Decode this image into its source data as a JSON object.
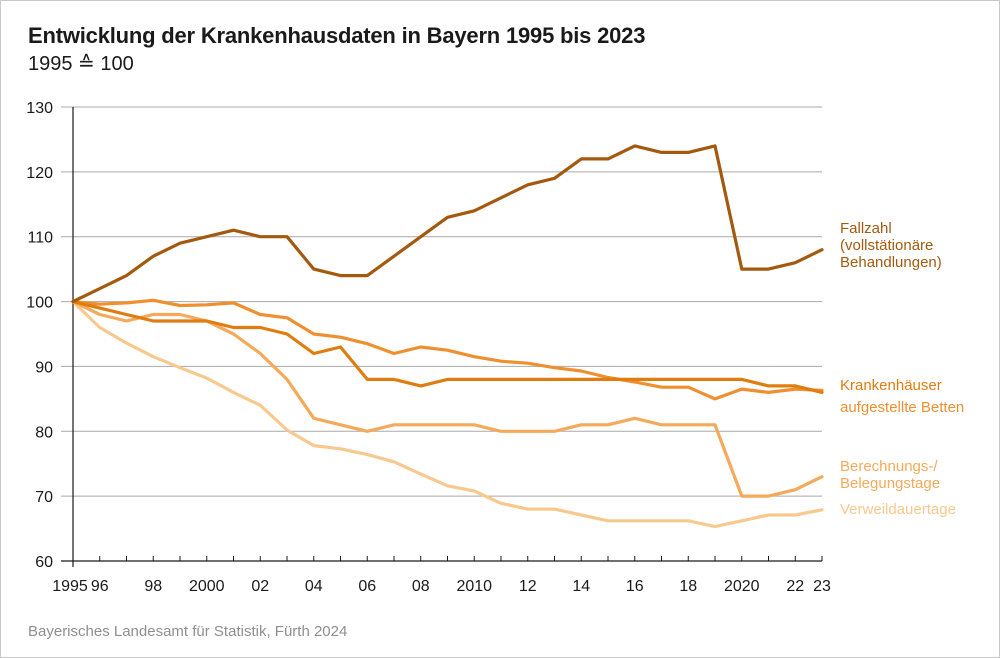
{
  "title": "Entwicklung der Krankenhausdaten in Bayern 1995 bis 2023",
  "subtitle": "1995 ≙ 100",
  "source": "Bayerisches Landesamt für Statistik, Fürth 2024",
  "chart_data": {
    "type": "line",
    "title": "Entwicklung der Krankenhausdaten in Bayern 1995 bis 2023",
    "subtitle": "1995 ≙ 100",
    "x": [
      1995,
      1996,
      1997,
      1998,
      1999,
      2000,
      2001,
      2002,
      2003,
      2004,
      2005,
      2006,
      2007,
      2008,
      2009,
      2010,
      2011,
      2012,
      2013,
      2014,
      2015,
      2016,
      2017,
      2018,
      2019,
      2020,
      2021,
      2022,
      2023
    ],
    "x_tick_labels": [
      {
        "x": 1995,
        "label": "1995"
      },
      {
        "x": 1996,
        "label": "96"
      },
      {
        "x": 1998,
        "label": "98"
      },
      {
        "x": 2000,
        "label": "2000"
      },
      {
        "x": 2002,
        "label": "02"
      },
      {
        "x": 2004,
        "label": "04"
      },
      {
        "x": 2006,
        "label": "06"
      },
      {
        "x": 2008,
        "label": "08"
      },
      {
        "x": 2010,
        "label": "2010"
      },
      {
        "x": 2012,
        "label": "12"
      },
      {
        "x": 2014,
        "label": "14"
      },
      {
        "x": 2016,
        "label": "16"
      },
      {
        "x": 2018,
        "label": "18"
      },
      {
        "x": 2020,
        "label": "2020"
      },
      {
        "x": 2022,
        "label": "22"
      },
      {
        "x": 2023,
        "label": "23"
      }
    ],
    "y_ticks": [
      60,
      70,
      80,
      90,
      100,
      110,
      120,
      130
    ],
    "ylim": [
      60,
      130
    ],
    "xlim": [
      1995,
      2023
    ],
    "grid": "horizontal",
    "legend": "direct labels right",
    "series": [
      {
        "id": "fallzahl",
        "label_lines": [
          "Fallzahl",
          "(vollstätionäre",
          "Behandlungen)"
        ],
        "color": "#a35a0f",
        "values": [
          100,
          102,
          104,
          107,
          109,
          110,
          111,
          110,
          110,
          105,
          104,
          104,
          107,
          110,
          113,
          114,
          116,
          118,
          119,
          122,
          122,
          124,
          123,
          123,
          124,
          105,
          105,
          106,
          108
        ]
      },
      {
        "id": "krankenhaeuser",
        "label_lines": [
          "Krankenhäuser"
        ],
        "color": "#e07d10",
        "values": [
          100,
          99,
          98,
          97,
          97,
          97,
          96,
          96,
          95,
          92,
          93,
          88,
          88,
          87,
          88,
          88,
          88,
          88,
          88,
          88,
          88,
          88,
          88,
          88,
          88,
          88,
          87,
          87,
          86
        ]
      },
      {
        "id": "betten",
        "label_lines": [
          "aufgestellte Betten"
        ],
        "color": "#ef9030",
        "values": [
          100,
          99.6,
          99.8,
          100.2,
          99.4,
          99.5,
          99.8,
          98,
          97.5,
          95,
          94.5,
          93.5,
          92,
          93,
          92.5,
          91.5,
          90.8,
          90.5,
          89.8,
          89.3,
          88.3,
          87.6,
          86.8,
          86.8,
          85,
          86.5,
          86,
          86.5,
          86.3
        ]
      },
      {
        "id": "berechnungstage",
        "label_lines": [
          "Berechnungs-/",
          "Belegungstage"
        ],
        "color": "#f4aa5a",
        "values": [
          100,
          98,
          97,
          98,
          98,
          97,
          95,
          92,
          88,
          82,
          81,
          80,
          81,
          81,
          81,
          81,
          80,
          80,
          80,
          81,
          81,
          82,
          81,
          81,
          81,
          70,
          70,
          71,
          73
        ]
      },
      {
        "id": "verweildauertage",
        "label_lines": [
          "Verweildauertage"
        ],
        "color": "#f8c98f",
        "values": [
          100,
          96,
          93.6,
          91.5,
          89.8,
          88.2,
          86,
          84,
          80.2,
          77.8,
          77.3,
          76.4,
          75.3,
          73.4,
          71.6,
          70.8,
          68.9,
          68,
          68,
          67.1,
          66.2,
          66.2,
          66.2,
          66.2,
          65.3,
          66.2,
          67.1,
          67.1,
          67.9
        ]
      }
    ]
  }
}
